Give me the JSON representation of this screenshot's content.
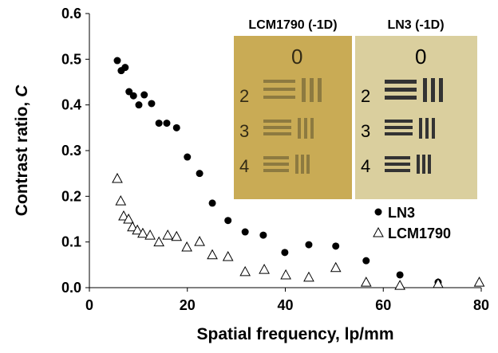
{
  "chart_data": {
    "type": "scatter",
    "xlabel": "Spatial  frequency, lp/mm",
    "ylabel": {
      "text": "Contrast ratio,",
      "variable": "C"
    },
    "xlim": [
      0,
      80
    ],
    "xticks": [
      0,
      20,
      40,
      60,
      80
    ],
    "ylim": [
      0,
      0.6
    ],
    "yticks": [
      {
        "value": 0,
        "label": "0.0"
      },
      {
        "value": 0.1,
        "label": "0.1"
      },
      {
        "value": 0.2,
        "label": "0.2"
      },
      {
        "value": 0.3,
        "label": "0.3"
      },
      {
        "value": 0.4,
        "label": "0.4"
      },
      {
        "value": 0.5,
        "label": "0.5"
      },
      {
        "value": 0.6,
        "label": "0.6"
      }
    ],
    "grid": false,
    "legend": "right",
    "series": [
      {
        "name": "LN3",
        "marker": "circle",
        "color": "#000000",
        "x": [
          5.7,
          6.5,
          7.3,
          8.1,
          9.0,
          10.1,
          11.2,
          12.7,
          14.2,
          15.8,
          17.8,
          20.0,
          22.5,
          25.1,
          28.3,
          31.8,
          35.5,
          39.9,
          44.8,
          50.3,
          56.5,
          63.4,
          71.2
        ],
        "values": [
          0.497,
          0.475,
          0.482,
          0.429,
          0.42,
          0.4,
          0.422,
          0.403,
          0.36,
          0.36,
          0.35,
          0.286,
          0.25,
          0.185,
          0.147,
          0.122,
          0.115,
          0.077,
          0.094,
          0.091,
          0.059,
          0.028,
          0.012
        ]
      },
      {
        "name": "LCM1790",
        "marker": "triangle",
        "color": "#000000",
        "x": [
          5.7,
          6.4,
          7.0,
          8.0,
          8.8,
          9.8,
          10.9,
          12.4,
          14.2,
          16.0,
          17.8,
          19.9,
          22.5,
          25.1,
          28.3,
          31.8,
          35.7,
          40.1,
          44.8,
          50.3,
          56.5,
          63.4,
          71.2,
          79.6
        ],
        "values": [
          0.239,
          0.19,
          0.157,
          0.15,
          0.133,
          0.126,
          0.119,
          0.115,
          0.1,
          0.115,
          0.112,
          0.089,
          0.101,
          0.072,
          0.068,
          0.035,
          0.04,
          0.028,
          0.023,
          0.044,
          0.012,
          0.005,
          0.009,
          0.012
        ]
      }
    ],
    "inset": {
      "left_label": "LCM1790 (-1D)",
      "right_label": "LN3 (-1D)"
    }
  }
}
